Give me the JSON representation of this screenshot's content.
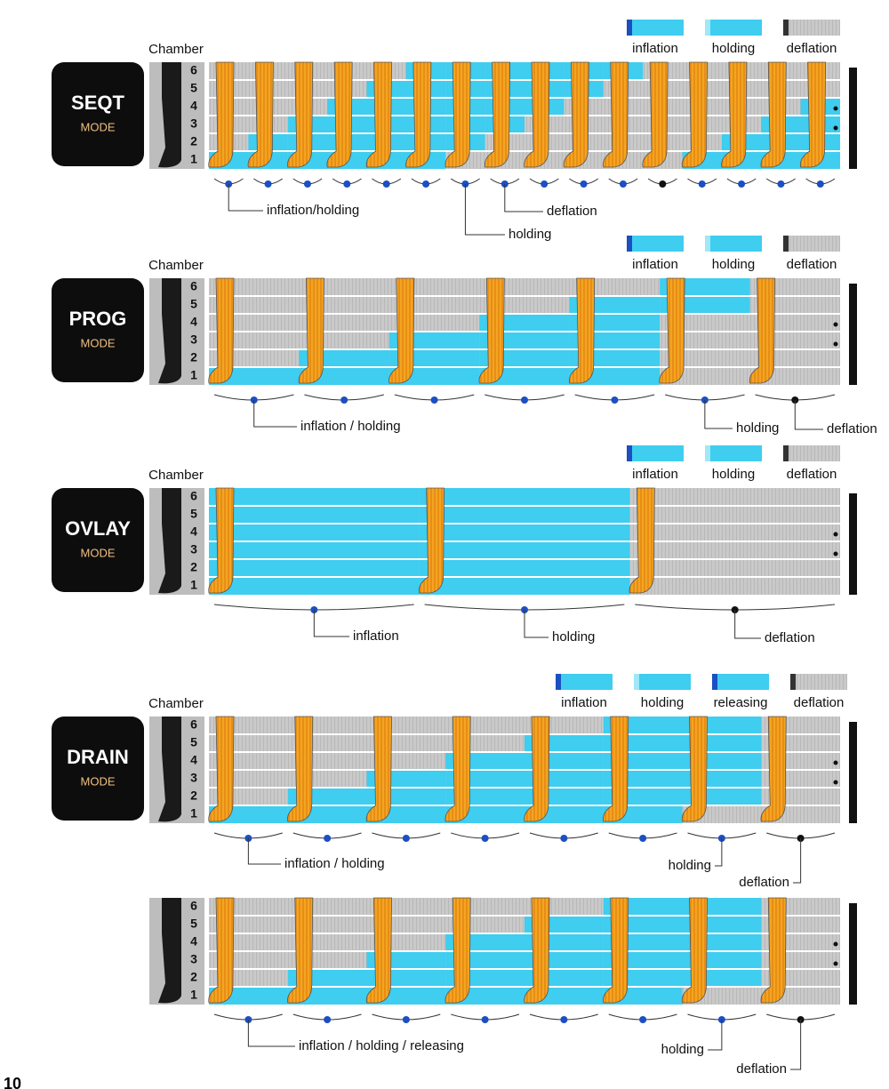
{
  "sections": [
    {
      "mode": "SEQT",
      "mode_sub": "MODE",
      "chamber_label": "Chamber",
      "chambers": [
        "6",
        "5",
        "4",
        "3",
        "2",
        "1"
      ],
      "legend": [
        "inflation",
        "holding",
        "deflation"
      ],
      "callouts": [
        "inflation/holding",
        "holding",
        "deflation"
      ]
    },
    {
      "mode": "PROG",
      "mode_sub": "MODE",
      "chamber_label": "Chamber",
      "chambers": [
        "6",
        "5",
        "4",
        "3",
        "2",
        "1"
      ],
      "legend": [
        "inflation",
        "holding",
        "deflation"
      ],
      "callouts": [
        "inflation / holding",
        "holding",
        "deflation"
      ]
    },
    {
      "mode": "OVLAY",
      "mode_sub": "MODE",
      "chamber_label": "Chamber",
      "chambers": [
        "6",
        "5",
        "4",
        "3",
        "2",
        "1"
      ],
      "legend": [
        "inflation",
        "holding",
        "deflation"
      ],
      "callouts": [
        "inflation",
        "holding",
        "deflation"
      ]
    },
    {
      "mode": "DRAIN",
      "mode_sub": "MODE",
      "chamber_label": "Chamber",
      "chambers": [
        "6",
        "5",
        "4",
        "3",
        "2",
        "1"
      ],
      "legend": [
        "inflation",
        "holding",
        "releasing",
        "deflation"
      ],
      "callouts": [
        "inflation / holding",
        "holding",
        "deflation"
      ]
    },
    {
      "chambers": [
        "6",
        "5",
        "4",
        "3",
        "2",
        "1"
      ],
      "callouts": [
        "inflation / holding / releasing",
        "holding",
        "deflation"
      ]
    }
  ],
  "page_number": "10"
}
